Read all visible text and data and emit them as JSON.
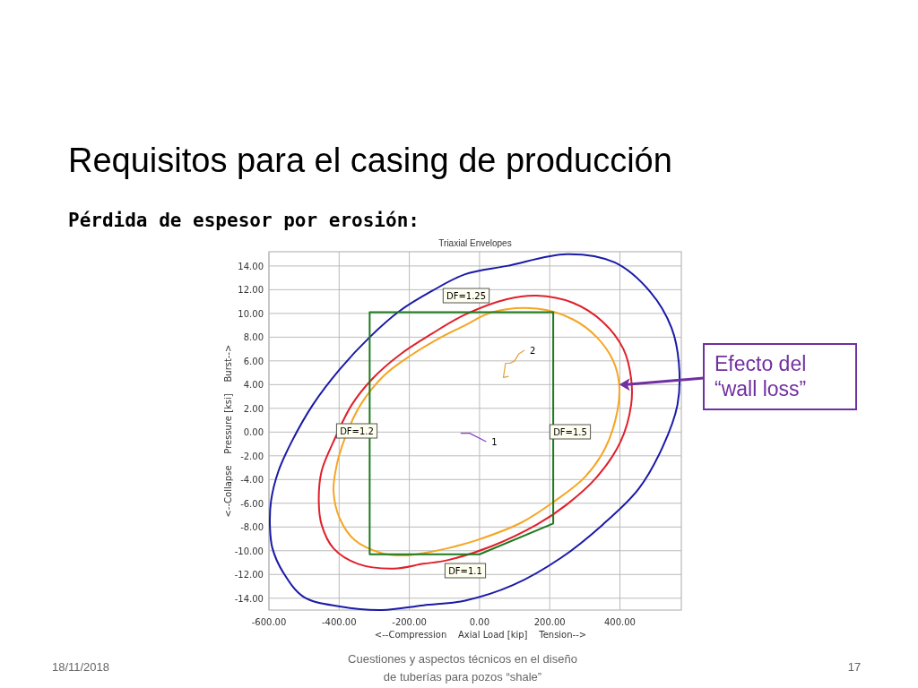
{
  "chart_data": {
    "type": "line",
    "title": "Requisitos para el casing de producción",
    "subtitle": "Pérdida de espesor por erosión:",
    "xlabel": "<--Compression    Axial Load [kip]    Tension-->",
    "ylabel": "<--Collapse    Pressure [ksi]    Burst-->",
    "xlim": [
      -600,
      575
    ],
    "ylim": [
      -15,
      15.2
    ],
    "xticks": [
      {
        "value": -600,
        "label": "-600.00"
      },
      {
        "value": -400,
        "label": "-400.00"
      },
      {
        "value": -200,
        "label": "-200.00"
      },
      {
        "value": 0,
        "label": "0.00"
      },
      {
        "value": 200,
        "label": "200.00"
      },
      {
        "value": 400,
        "label": "400.00"
      }
    ],
    "yticks": [
      {
        "value": -14,
        "label": "-14.00"
      },
      {
        "value": -12,
        "label": "-12.00"
      },
      {
        "value": -10,
        "label": "-10.00"
      },
      {
        "value": -8,
        "label": "-8.00"
      },
      {
        "value": -6,
        "label": "-6.00"
      },
      {
        "value": -4,
        "label": "-4.00"
      },
      {
        "value": -2,
        "label": "-2.00"
      },
      {
        "value": 0,
        "label": "0.00"
      },
      {
        "value": 2,
        "label": "2.00"
      },
      {
        "value": 4,
        "label": "4.00"
      },
      {
        "value": 6,
        "label": "6.00"
      },
      {
        "value": 8,
        "label": "8.00"
      },
      {
        "value": 10,
        "label": "10.00"
      },
      {
        "value": 12,
        "label": "12.00"
      },
      {
        "value": 14,
        "label": "14.00"
      }
    ],
    "grid": true,
    "marker": "none",
    "line_style": "solid",
    "series": [
      {
        "name": "1",
        "color": "#8a3fc8",
        "x": [
          -54,
          -28,
          19
        ],
        "values": [
          -0.1,
          -0.1,
          -0.8
        ]
      },
      {
        "name": "2",
        "color": "#e0a040",
        "x": [
          83,
          68,
          74,
          87,
          100,
          112,
          128
        ],
        "values": [
          4.7,
          4.6,
          5.8,
          5.8,
          6,
          6.6,
          6.9
        ]
      }
    ],
    "annotations": [
      "Triaxial Envelopes",
      "18/11/2018",
      "Cuestiones y aspectos técnicos en el diseño\nde tuberías para pozos “shale”",
      "17",
      "DF=1.25",
      "DF=1.2",
      "DF=1.5",
      "DF=1.1",
      "Efecto del\n“wall loss”"
    ]
  }
}
